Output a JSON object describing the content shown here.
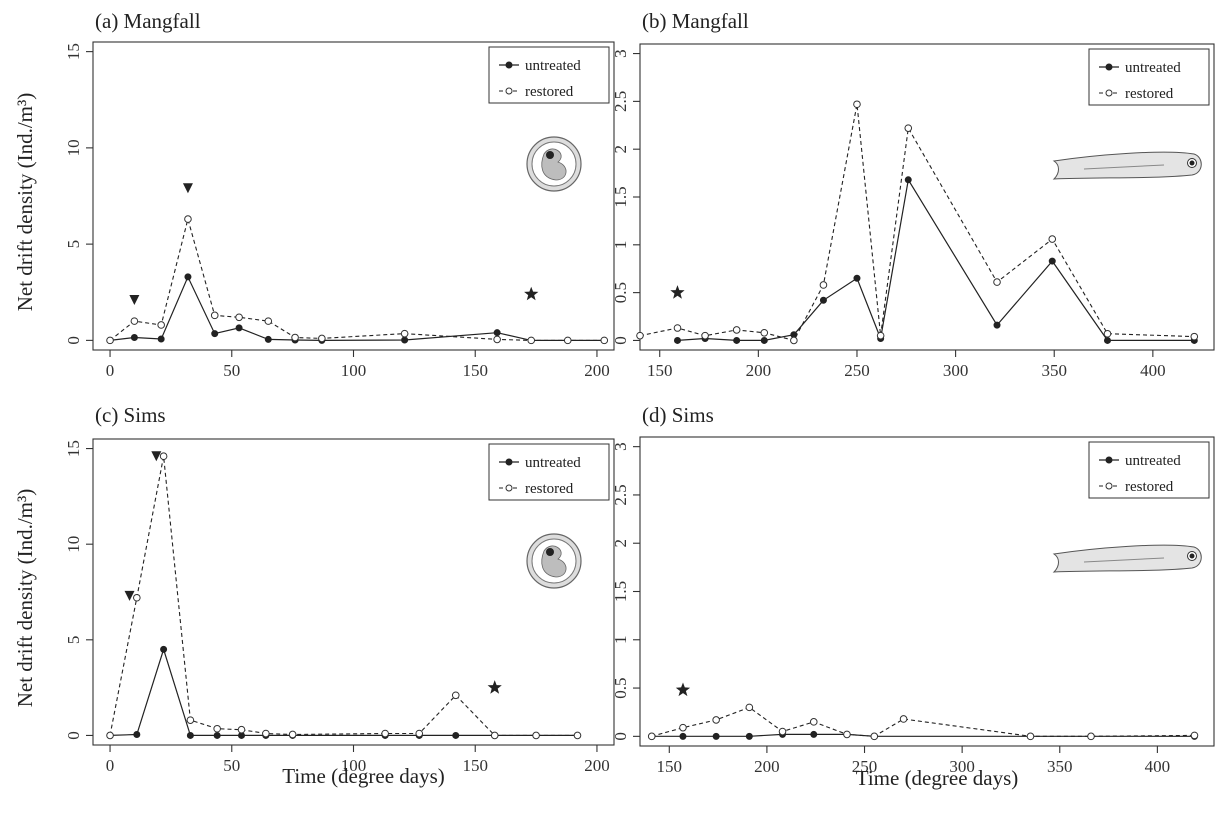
{
  "chart_data": [
    {
      "type": "line",
      "title": "(a) Mangfall",
      "xlabel": "",
      "ylabel": "Net drift density (Ind./m³)",
      "xlim": [
        -7,
        207
      ],
      "ylim": [
        -0.5,
        15.5
      ],
      "xticks": [
        0,
        50,
        100,
        150,
        200
      ],
      "yticks": [
        0,
        5,
        10,
        15
      ],
      "yticklabels": [
        "0",
        "5",
        "10",
        "15"
      ],
      "legend": {
        "entries": [
          "untreated",
          "restored"
        ],
        "position": "top-right"
      },
      "icon": "egg-icon",
      "series": [
        {
          "name": "untreated",
          "style": "solid-filled",
          "x": [
            0,
            10,
            21,
            32,
            43,
            53,
            65,
            76,
            87,
            121,
            159,
            173,
            188,
            203
          ],
          "y": [
            0,
            0.15,
            0.07,
            3.3,
            0.35,
            0.65,
            0.05,
            0.02,
            0.0,
            0.02,
            0.4,
            0.0,
            0.0,
            0.0
          ]
        },
        {
          "name": "restored",
          "style": "dashed-open",
          "x": [
            0,
            10,
            21,
            32,
            43,
            53,
            65,
            76,
            87,
            121,
            159,
            173,
            188,
            203
          ],
          "y": [
            0,
            1.0,
            0.8,
            6.3,
            1.3,
            1.2,
            1.0,
            0.15,
            0.1,
            0.35,
            0.05,
            0.0,
            0.0,
            0.0
          ]
        }
      ],
      "annotations": [
        {
          "type": "triangle-down",
          "x": 10,
          "y": 2.1
        },
        {
          "type": "triangle-down",
          "x": 32,
          "y": 7.9
        },
        {
          "type": "star",
          "x": 173,
          "y": 2.4
        }
      ]
    },
    {
      "type": "line",
      "title": "(b) Mangfall",
      "xlabel": "",
      "ylabel": "",
      "xlim": [
        140,
        431
      ],
      "ylim": [
        -0.1,
        3.1
      ],
      "xticks": [
        150,
        200,
        250,
        300,
        350,
        400
      ],
      "yticks": [
        0,
        0.5,
        1,
        1.5,
        2,
        2.5,
        3
      ],
      "yticklabels": [
        "0",
        "0.5",
        "1",
        "1.5",
        "2",
        "2.5",
        "3"
      ],
      "legend": {
        "entries": [
          "untreated",
          "restored"
        ],
        "position": "top-right"
      },
      "icon": "larva-icon",
      "series": [
        {
          "name": "untreated",
          "style": "solid-filled",
          "x": [
            159,
            173,
            189,
            203,
            218,
            233,
            250,
            262,
            276,
            321,
            349,
            377,
            421
          ],
          "y": [
            0.0,
            0.02,
            0.0,
            0.0,
            0.06,
            0.42,
            0.65,
            0.02,
            1.68,
            0.16,
            0.83,
            0.0,
            0.0
          ]
        },
        {
          "name": "restored",
          "style": "dashed-open",
          "x": [
            140,
            159,
            173,
            189,
            203,
            218,
            233,
            250,
            262,
            276,
            321,
            349,
            377,
            421
          ],
          "y": [
            0.05,
            0.13,
            0.05,
            0.11,
            0.08,
            0.0,
            0.58,
            2.47,
            0.05,
            2.22,
            0.61,
            1.06,
            0.07,
            0.04
          ]
        }
      ],
      "annotations": [
        {
          "type": "star",
          "x": 159,
          "y": 0.5
        }
      ]
    },
    {
      "type": "line",
      "title": "(c) Sims",
      "xlabel": "Time (degree days)",
      "ylabel": "Net drift density (Ind./m³)",
      "xlim": [
        -7,
        207
      ],
      "ylim": [
        -0.5,
        15.5
      ],
      "xticks": [
        0,
        50,
        100,
        150,
        200
      ],
      "yticks": [
        0,
        5,
        10,
        15
      ],
      "yticklabels": [
        "0",
        "5",
        "10",
        "15"
      ],
      "legend": {
        "entries": [
          "untreated",
          "restored"
        ],
        "position": "top-right"
      },
      "icon": "egg-icon",
      "series": [
        {
          "name": "untreated",
          "style": "solid-filled",
          "x": [
            0,
            11,
            22,
            33,
            44,
            54,
            64,
            75,
            113,
            127,
            142,
            158,
            175,
            192
          ],
          "y": [
            0,
            0.05,
            4.5,
            0.0,
            0.0,
            0.0,
            0.0,
            0.0,
            0.0,
            0.0,
            0.0,
            0.0,
            0.0,
            0.0
          ]
        },
        {
          "name": "restored",
          "style": "dashed-open",
          "x": [
            0,
            11,
            22,
            33,
            44,
            54,
            64,
            75,
            113,
            127,
            142,
            158,
            175,
            192
          ],
          "y": [
            0,
            7.2,
            14.6,
            0.8,
            0.35,
            0.3,
            0.1,
            0.05,
            0.1,
            0.1,
            2.1,
            0.0,
            0.0,
            0.0
          ]
        }
      ],
      "annotations": [
        {
          "type": "triangle-down",
          "x": 8,
          "y": 7.3
        },
        {
          "type": "triangle-down",
          "x": 19,
          "y": 14.6
        },
        {
          "type": "star",
          "x": 158,
          "y": 2.5
        }
      ]
    },
    {
      "type": "line",
      "title": "(d) Sims",
      "xlabel": "Time (degree days)",
      "ylabel": "",
      "xlim": [
        135,
        429
      ],
      "ylim": [
        -0.1,
        3.1
      ],
      "xticks": [
        150,
        200,
        250,
        300,
        350,
        400
      ],
      "yticks": [
        0,
        0.5,
        1,
        1.5,
        2,
        2.5,
        3
      ],
      "yticklabels": [
        "0",
        "0.5",
        "1",
        "1.5",
        "2",
        "2.5",
        "3"
      ],
      "legend": {
        "entries": [
          "untreated",
          "restored"
        ],
        "position": "top-right"
      },
      "icon": "larva-icon",
      "series": [
        {
          "name": "untreated",
          "style": "solid-filled",
          "x": [
            141,
            157,
            174,
            191,
            208,
            224,
            241,
            255,
            335,
            366,
            419
          ],
          "y": [
            0,
            0,
            0,
            0,
            0.02,
            0.02,
            0.02,
            0.0,
            0.0,
            0.0,
            0.0
          ]
        },
        {
          "name": "restored",
          "style": "dashed-open",
          "x": [
            141,
            157,
            174,
            191,
            208,
            224,
            241,
            255,
            270,
            335,
            366,
            419
          ],
          "y": [
            0,
            0.09,
            0.17,
            0.3,
            0.05,
            0.15,
            0.02,
            0.0,
            0.18,
            0.0,
            0.0,
            0.01
          ]
        }
      ],
      "annotations": [
        {
          "type": "star",
          "x": 157,
          "y": 0.48
        }
      ]
    }
  ]
}
